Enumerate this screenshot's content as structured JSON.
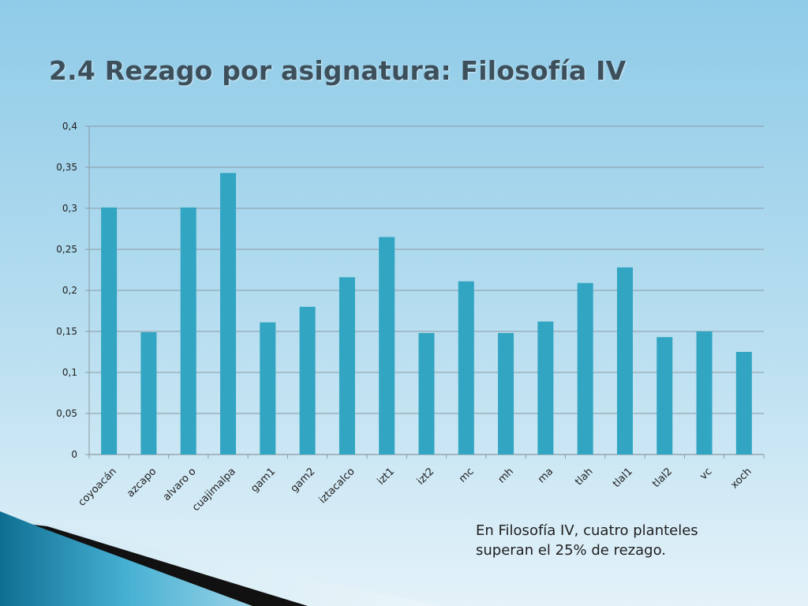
{
  "slide": {
    "title": "2.4 Rezago por asignatura: Filosofía IV",
    "note_lines": [
      "En Filosofía IV, cuatro planteles",
      "superan el 25% de rezago."
    ]
  },
  "colors": {
    "bar": "#31a5c1",
    "grid": "#8a9aa3",
    "axis_text": "#1e1e1e"
  },
  "chart_data": {
    "type": "bar",
    "title": "",
    "xlabel": "",
    "ylabel": "",
    "categories": [
      "coyoacán",
      "azcapo",
      "alvaro o",
      "cuajimalpa",
      "gam1",
      "gam2",
      "iztacalco",
      "izt1",
      "izt2",
      "mc",
      "mh",
      "ma",
      "tlah",
      "tlal1",
      "tlal2",
      "vc",
      "xoch"
    ],
    "values": [
      0.301,
      0.149,
      0.301,
      0.343,
      0.161,
      0.18,
      0.216,
      0.265,
      0.148,
      0.211,
      0.148,
      0.162,
      0.209,
      0.228,
      0.143,
      0.15,
      0.125
    ],
    "ylim": [
      0,
      0.4
    ],
    "yticks": [
      0,
      0.05,
      0.1,
      0.15,
      0.2,
      0.25,
      0.3,
      0.35,
      0.4
    ],
    "ytick_labels": [
      "0",
      "0,05",
      "0,1",
      "0,15",
      "0,2",
      "0,25",
      "0,3",
      "0,35",
      "0,4"
    ],
    "grid": true,
    "legend": "none"
  }
}
